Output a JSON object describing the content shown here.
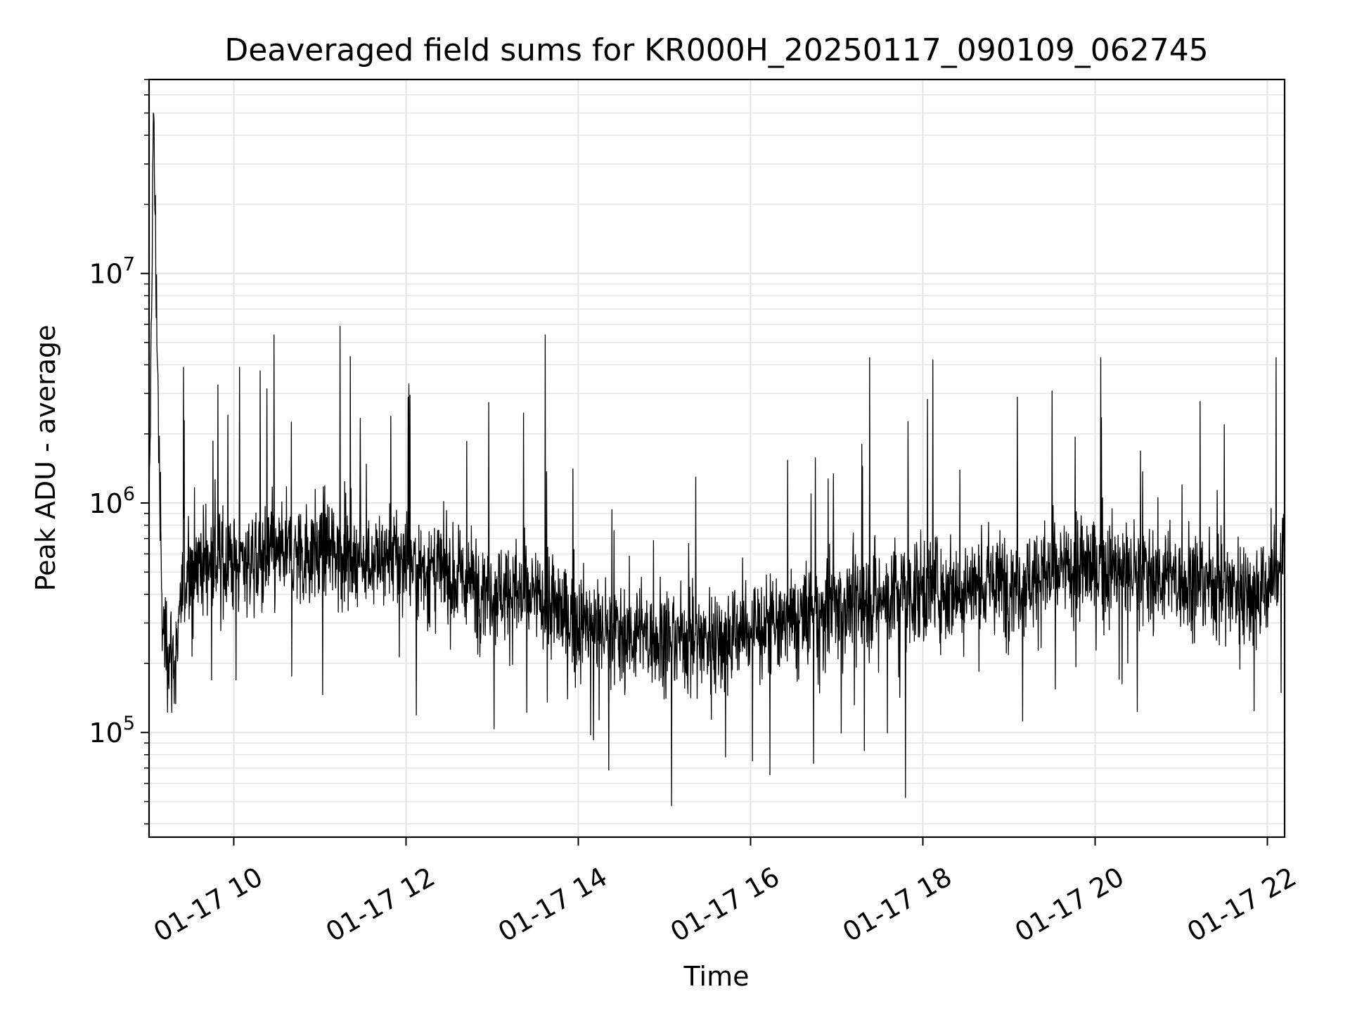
{
  "chart_data": {
    "type": "line",
    "title": "Deaveraged field sums for KR000H_20250117_090109_062745",
    "xlabel": "Time",
    "ylabel": "Peak ADU - average",
    "y_scale": "log",
    "grid": true,
    "x_range": [
      "01-17 09:01",
      "01-17 22:12"
    ],
    "ylim": [
      35000,
      70000000
    ],
    "x_ticks": [
      {
        "value": "01-17 10:00",
        "label": "01-17 10"
      },
      {
        "value": "01-17 12:00",
        "label": "01-17 12"
      },
      {
        "value": "01-17 14:00",
        "label": "01-17 14"
      },
      {
        "value": "01-17 16:00",
        "label": "01-17 16"
      },
      {
        "value": "01-17 18:00",
        "label": "01-17 18"
      },
      {
        "value": "01-17 20:00",
        "label": "01-17 20"
      },
      {
        "value": "01-17 22:00",
        "label": "01-17 22"
      }
    ],
    "y_ticks": [
      {
        "value": 100000,
        "base": "10",
        "exp": "5"
      },
      {
        "value": 1000000,
        "base": "10",
        "exp": "6"
      },
      {
        "value": 10000000,
        "base": "10",
        "exp": "7"
      }
    ],
    "line_color": "#000000",
    "series": [
      {
        "x": [
          "01-17 09:01",
          "01-17 09:04",
          "01-17 09:10",
          "01-17 09:15",
          "01-17 09:20",
          "01-17 09:25",
          "01-17 09:30",
          "01-17 09:45",
          "01-17 10:00",
          "01-17 10:30",
          "01-17 11:00",
          "01-17 11:30",
          "01-17 12:00",
          "01-17 12:30",
          "01-17 13:00",
          "01-17 13:30",
          "01-17 14:00",
          "01-17 14:30",
          "01-17 15:00",
          "01-17 15:30",
          "01-17 16:00",
          "01-17 16:30",
          "01-17 17:00",
          "01-17 17:30",
          "01-17 18:00",
          "01-17 18:30",
          "01-17 19:00",
          "01-17 19:30",
          "01-17 20:00",
          "01-17 20:30",
          "01-17 21:00",
          "01-17 21:30",
          "01-17 22:00",
          "01-17 22:12"
        ],
        "y": [
          600000,
          50000000,
          300000,
          230000,
          200000,
          450000,
          550000,
          560000,
          560000,
          580000,
          620000,
          580000,
          560000,
          470000,
          430000,
          380000,
          300000,
          270000,
          260000,
          260000,
          280000,
          300000,
          360000,
          390000,
          420000,
          430000,
          450000,
          490000,
          520000,
          500000,
          460000,
          440000,
          420000,
          600000
        ],
        "peaks": [
          {
            "x": "01-17 09:25",
            "y": 3900000
          },
          {
            "x": "01-17 10:04",
            "y": 3900000
          },
          {
            "x": "01-17 10:28",
            "y": 5400000
          },
          {
            "x": "01-17 11:14",
            "y": 5900000
          },
          {
            "x": "01-17 12:02",
            "y": 3300000
          },
          {
            "x": "01-17 13:37",
            "y": 5400000
          },
          {
            "x": "01-17 15:05",
            "y": 48000
          },
          {
            "x": "01-17 17:23",
            "y": 4300000
          },
          {
            "x": "01-17 17:48",
            "y": 52000
          },
          {
            "x": "01-17 18:07",
            "y": 4200000
          },
          {
            "x": "01-17 20:04",
            "y": 4300000
          },
          {
            "x": "01-17 22:06",
            "y": 4300000
          }
        ]
      }
    ]
  }
}
